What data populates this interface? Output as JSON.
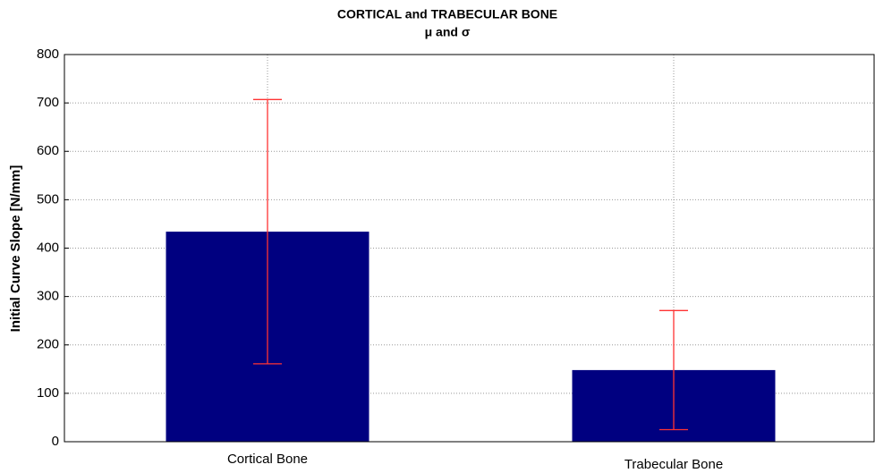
{
  "chart_data": {
    "type": "bar",
    "title": "CORTICAL and TRABECULAR BONE",
    "subtitle": "μ and σ",
    "y_label": "Initial Curve Slope [N/mm]",
    "categories": [
      "Cortical Bone",
      "Trabecular Bone"
    ],
    "values": [
      434,
      148
    ],
    "errors": [
      273,
      123
    ],
    "color": "#000080",
    "error_color": "#ff3333",
    "ylim": [
      0,
      800
    ],
    "yticks": [
      0,
      100,
      200,
      300,
      400,
      500,
      600,
      700,
      800
    ],
    "grid": true
  }
}
